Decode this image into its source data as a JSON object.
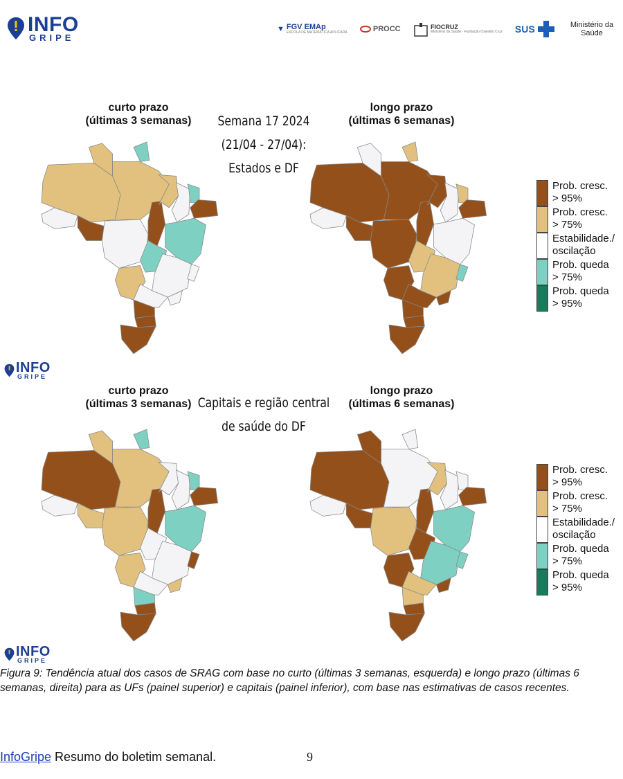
{
  "header": {
    "logo": {
      "line1": "INFO",
      "line2": "GRIPE"
    },
    "partners": [
      {
        "name": "FGV EMAp",
        "sub": "ESCOLA DE MATEMÁTICA APLICADA"
      },
      {
        "name": "PROCC",
        "sub": ""
      },
      {
        "name": "FIOCRUZ",
        "sub": "Ministério da Saúde · Fundação Oswaldo Cruz"
      },
      {
        "name": "SUS",
        "sub": ""
      },
      {
        "name": "Ministério da Saúde",
        "sub": ""
      }
    ]
  },
  "top_panel": {
    "left_title_1": "curto prazo",
    "left_title_2": "(últimas 3 semanas)",
    "center_1": "Semana 17 2024",
    "center_2": "(21/04 - 27/04):",
    "center_3": "Estados e DF",
    "right_title_1": "longo prazo",
    "right_title_2": "(últimas 6 semanas)"
  },
  "bottom_panel": {
    "left_title_1": "curto prazo",
    "left_title_2": "(últimas 3 semanas)",
    "center_1": "Capitais e região central",
    "center_2": "de saúde do DF",
    "right_title_1": "longo prazo",
    "right_title_2": "(últimas 6 semanas)"
  },
  "legend": [
    {
      "line1": "Prob. cresc.",
      "line2": "> 95%",
      "color": "#94501b"
    },
    {
      "line1": "Prob. cresc.",
      "line2": "> 75%",
      "color": "#e2c17f"
    },
    {
      "line1": "Estabilidade./",
      "line2": "oscilação",
      "color": "#ffffff"
    },
    {
      "line1": "Prob. queda",
      "line2": "> 75%",
      "color": "#7dd0c2"
    },
    {
      "line1": "Prob. queda",
      "line2": "> 95%",
      "color": "#1a7a5c"
    }
  ],
  "colors": {
    "up95": "#94501b",
    "up75": "#e2c17f",
    "stable": "#f4f4f6",
    "down75": "#7dd0c2",
    "brand": "#1c3f93"
  },
  "caption": "Figura 9: Tendência atual dos casos de SRAG com base no curto (últimas 3 semanas, esquerda) e longo prazo (últimas 6 semanas, direita) para as UFs (painel superior) e capitais (painel inferior), com base nas estimativas de casos recentes.",
  "footer": {
    "link": "InfoGripe",
    "text": " Resumo do boletim semanal.",
    "page": "9"
  }
}
